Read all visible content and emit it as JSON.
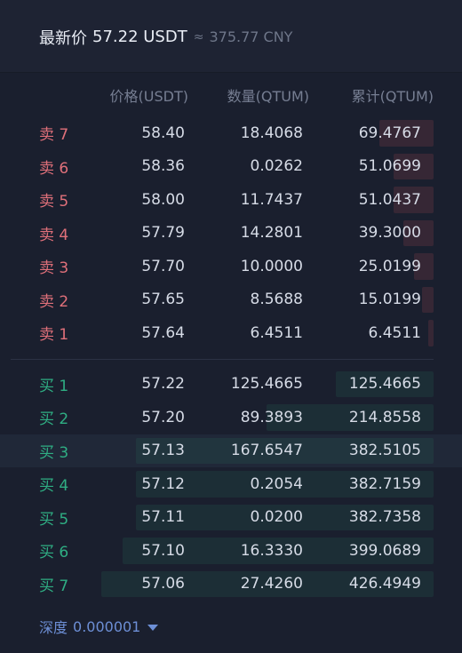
{
  "header": {
    "latest_label": "最新价",
    "latest_price": "57.22 USDT",
    "approx": "≈",
    "cny_price": "375.77 CNY"
  },
  "columns": {
    "price": "价格(USDT)",
    "quantity": "数量(QTUM)",
    "total": "累计(QTUM)"
  },
  "asks": [
    {
      "label": "卖 7",
      "price": "58.40",
      "qty": "18.4068",
      "total": "69.4767",
      "depth": 0.163
    },
    {
      "label": "卖 6",
      "price": "58.36",
      "qty": "0.0262",
      "total": "51.0699",
      "depth": 0.12
    },
    {
      "label": "卖 5",
      "price": "58.00",
      "qty": "11.7437",
      "total": "51.0437",
      "depth": 0.12
    },
    {
      "label": "卖 4",
      "price": "57.79",
      "qty": "14.2801",
      "total": "39.3000",
      "depth": 0.092
    },
    {
      "label": "卖 3",
      "price": "57.70",
      "qty": "10.0000",
      "total": "25.0199",
      "depth": 0.059
    },
    {
      "label": "卖 2",
      "price": "57.65",
      "qty": "8.5688",
      "total": "15.0199",
      "depth": 0.035
    },
    {
      "label": "卖 1",
      "price": "57.64",
      "qty": "6.4511",
      "total": "6.4511",
      "depth": 0.015
    }
  ],
  "bids": [
    {
      "label": "买 1",
      "price": "57.22",
      "qty": "125.4665",
      "total": "125.4665",
      "depth": 0.294
    },
    {
      "label": "买 2",
      "price": "57.20",
      "qty": "89.3893",
      "total": "214.8558",
      "depth": 0.504
    },
    {
      "label": "买 3",
      "price": "57.13",
      "qty": "167.6547",
      "total": "382.5105",
      "depth": 0.897
    },
    {
      "label": "买 4",
      "price": "57.12",
      "qty": "0.2054",
      "total": "382.7159",
      "depth": 0.897
    },
    {
      "label": "买 5",
      "price": "57.11",
      "qty": "0.0200",
      "total": "382.7358",
      "depth": 0.897
    },
    {
      "label": "买 6",
      "price": "57.10",
      "qty": "16.3330",
      "total": "399.0689",
      "depth": 0.936
    },
    {
      "label": "买 7",
      "price": "57.06",
      "qty": "27.4260",
      "total": "426.4949",
      "depth": 1.0
    }
  ],
  "highlighted_bid_index": 2,
  "footer": {
    "depth_label": "深度",
    "depth_value": "0.000001",
    "dropdown_icon": "caret-down-icon"
  },
  "colors": {
    "ask": "#e0707a",
    "bid": "#2fae83",
    "accent": "#6d8fd6",
    "background": "#1a1f2e"
  }
}
